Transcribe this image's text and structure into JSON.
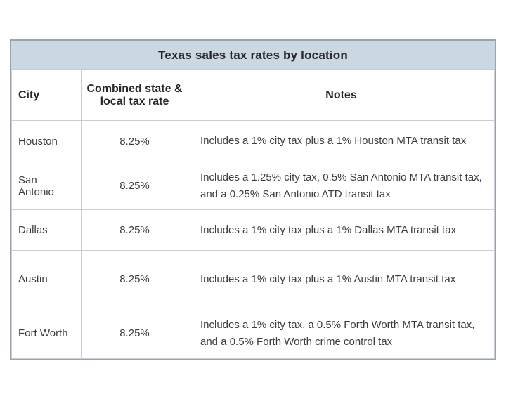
{
  "chart_data": {
    "type": "table",
    "title": "Texas sales tax rates by location",
    "columns": [
      "City",
      "Combined state & local tax rate",
      "Notes"
    ],
    "rows": [
      [
        "Houston",
        "8.25%",
        "Includes a 1% city tax plus a 1% Houston MTA transit tax"
      ],
      [
        "San Antonio",
        "8.25%",
        "Includes a 1.25% city tax, 0.5% San Antonio MTA transit tax, and a 0.25% San Antonio ATD transit tax"
      ],
      [
        "Dallas",
        "8.25%",
        "Includes a 1% city tax plus a 1% Dallas MTA transit tax"
      ],
      [
        "Austin",
        "8.25%",
        "Includes a 1% city tax plus a 1% Austin MTA transit tax"
      ],
      [
        "Fort Worth",
        "8.25%",
        "Includes a 1% city tax, a 0.5% Forth Worth MTA transit tax, and a 0.5% Forth Worth crime control tax"
      ]
    ],
    "colors": {
      "title_background": "#ccd8e1",
      "outer_border": "#9aa4ae",
      "inner_border": "#c9ced4",
      "title_text": "#24272b",
      "body_text": "#3a3d40"
    }
  }
}
